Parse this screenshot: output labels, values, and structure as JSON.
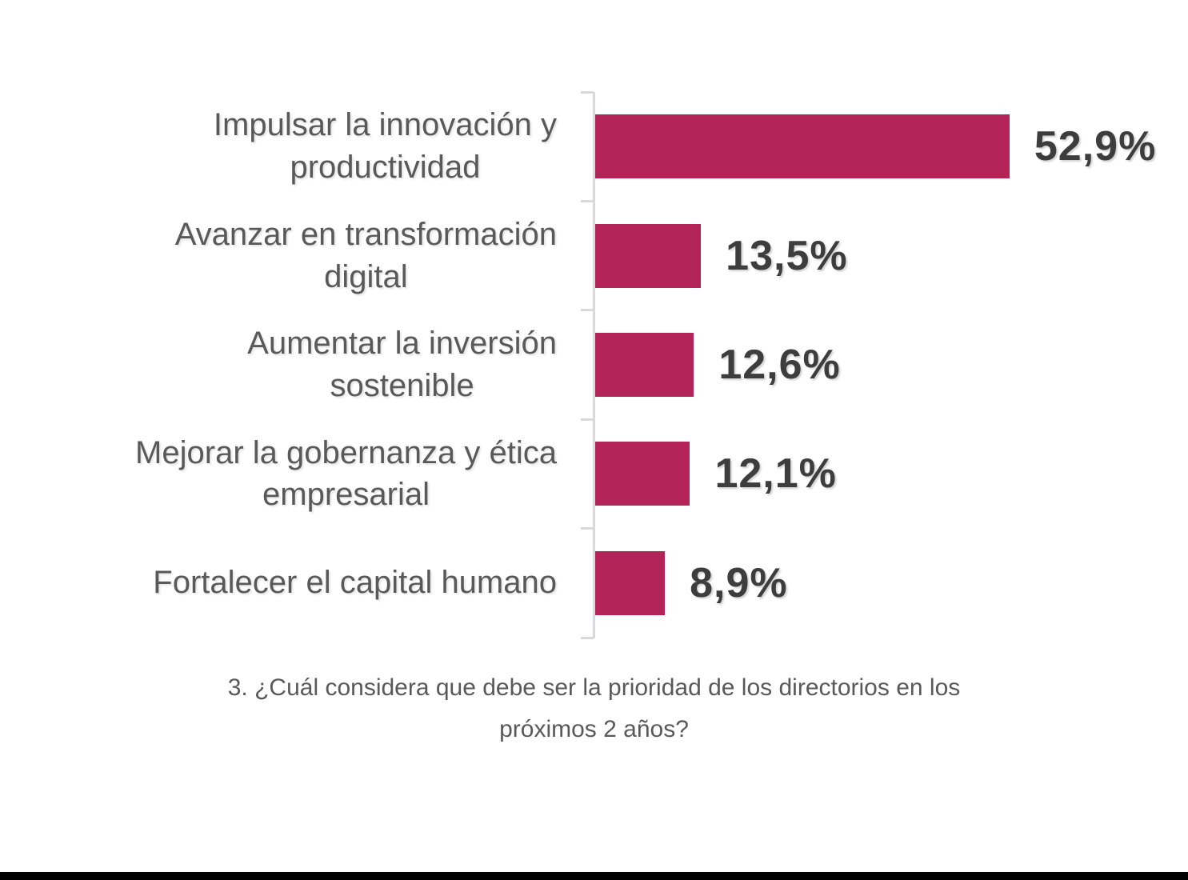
{
  "chart_data": {
    "type": "bar",
    "orientation": "horizontal",
    "caption": "3. ¿Cuál considera que debe ser la prioridad de los directorios en los\npróximos 2 años?",
    "categories": [
      "Impulsar la innovación y productividad",
      "Avanzar en transformación digital",
      "Aumentar la inversión sostenible",
      "Mejorar la gobernanza y ética empresarial",
      "Fortalecer el capital humano"
    ],
    "categories_display": [
      "Impulsar la innovación y\nproductividad",
      "Avanzar en transformación\ndigital",
      "Aumentar la inversión\nsostenible",
      "Mejorar la gobernanza y ética\nempresarial",
      "Fortalecer el capital humano"
    ],
    "values": [
      52.9,
      13.5,
      12.6,
      12.1,
      8.9
    ],
    "value_labels": [
      "52,9%",
      "13,5%",
      "12,6%",
      "12,1%",
      "8,9%"
    ],
    "xlim": [
      0,
      55
    ],
    "grid": false,
    "legend": false,
    "colors": {
      "bar": "#B22358",
      "value_text": "#3D3D3D",
      "category_text": "#595959",
      "caption_text": "#595959",
      "axis": "#D9D9D9",
      "background": "#FFFFFF",
      "bottom_bar": "#000000"
    }
  }
}
